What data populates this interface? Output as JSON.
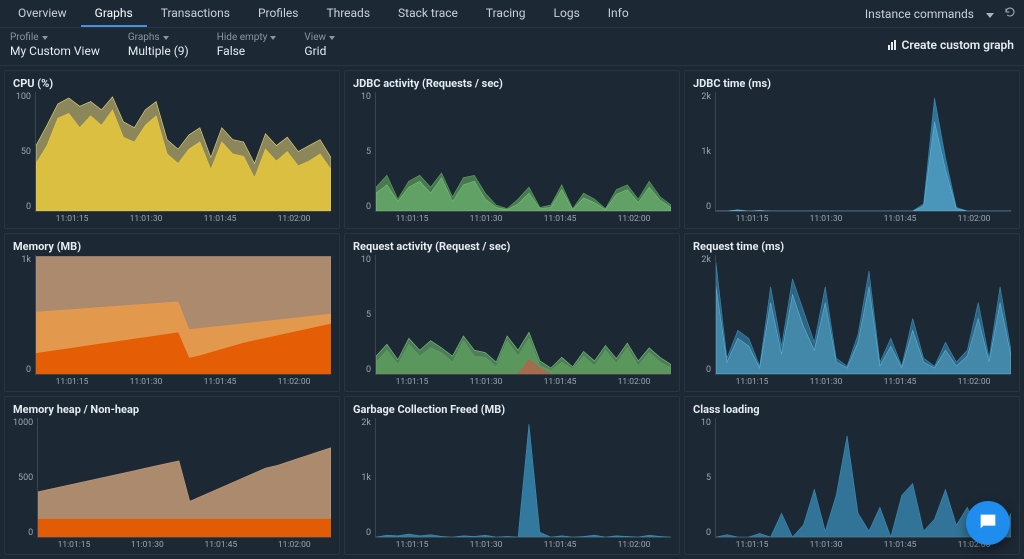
{
  "nav": {
    "tabs": [
      "Overview",
      "Graphs",
      "Transactions",
      "Profiles",
      "Threads",
      "Stack trace",
      "Tracing",
      "Logs",
      "Info"
    ],
    "active_index": 1,
    "instance_commands_label": "Instance commands"
  },
  "filters": {
    "profile": {
      "label": "Profile",
      "value": "My Custom View"
    },
    "graphs": {
      "label": "Graphs",
      "value": "Multiple (9)"
    },
    "hideempty": {
      "label": "Hide empty",
      "value": "False"
    },
    "view": {
      "label": "View",
      "value": "Grid"
    },
    "create_label": "Create custom graph"
  },
  "xaxis_ticks": [
    "11:01:15",
    "11:01:30",
    "11:01:45",
    "11:02:00"
  ],
  "colors": {
    "bg": "#1c2834",
    "panel_border": "#2a3542",
    "axis": "#3a4552",
    "text": "#c8d2dc",
    "muted": "#9aa6b2"
  },
  "charts": [
    {
      "id": "cpu",
      "title": "CPU (%)",
      "type": "area",
      "ylim": [
        0,
        100
      ],
      "yticks": [
        "100",
        "50",
        "0"
      ],
      "series": [
        {
          "color": "#e8d67a",
          "opacity": 0.55,
          "values": [
            55,
            72,
            90,
            95,
            88,
            92,
            85,
            96,
            75,
            70,
            85,
            92,
            60,
            52,
            64,
            70,
            45,
            70,
            60,
            58,
            40,
            65,
            55,
            62,
            50,
            55,
            60,
            45
          ]
        },
        {
          "color": "#e8c93c",
          "opacity": 0.85,
          "values": [
            40,
            55,
            78,
            82,
            70,
            80,
            72,
            85,
            62,
            58,
            72,
            80,
            48,
            40,
            52,
            58,
            35,
            58,
            48,
            46,
            28,
            52,
            42,
            50,
            38,
            42,
            48,
            35
          ]
        }
      ]
    },
    {
      "id": "jdbc_activity",
      "title": "JDBC activity (Requests / sec)",
      "type": "area",
      "ylim": [
        0,
        10
      ],
      "yticks": [
        "10",
        "5",
        "0"
      ],
      "series": [
        {
          "color": "#5fa35f",
          "opacity": 0.65,
          "values": [
            2,
            3,
            1,
            2.5,
            3,
            2,
            3.2,
            1.2,
            2.8,
            3,
            1.5,
            0.5,
            0.2,
            1,
            2,
            0.3,
            0.5,
            2.2,
            0.2,
            1.5,
            1,
            0.2,
            1.8,
            2.2,
            1,
            2.5,
            1.2,
            0.5
          ]
        },
        {
          "color": "#79c279",
          "opacity": 0.55,
          "values": [
            1.5,
            2.2,
            0.8,
            2,
            2.5,
            1.5,
            2.8,
            0.8,
            2.2,
            2.5,
            1,
            0.3,
            0.1,
            0.6,
            1.5,
            0.2,
            0.3,
            1.8,
            0.1,
            1.1,
            0.7,
            0.1,
            1.4,
            1.8,
            0.7,
            2,
            0.9,
            0.3
          ]
        }
      ]
    },
    {
      "id": "jdbc_time",
      "title": "JDBC time (ms)",
      "type": "area",
      "ylim": [
        0,
        2000
      ],
      "yticks": [
        "2k",
        "1k",
        "0"
      ],
      "series": [
        {
          "color": "#3a8db8",
          "opacity": 0.75,
          "values": [
            0,
            0,
            20,
            0,
            10,
            0,
            0,
            0,
            0,
            0,
            0,
            0,
            0,
            0,
            0,
            0,
            0,
            0,
            0,
            120,
            1900,
            900,
            60,
            0,
            0,
            0,
            0,
            0
          ]
        },
        {
          "color": "#5fb3d9",
          "opacity": 0.55,
          "values": [
            0,
            0,
            15,
            0,
            8,
            0,
            0,
            0,
            0,
            0,
            0,
            0,
            0,
            0,
            0,
            0,
            0,
            0,
            0,
            80,
            1500,
            700,
            40,
            0,
            0,
            0,
            0,
            0
          ]
        }
      ]
    },
    {
      "id": "memory",
      "title": "Memory (MB)",
      "type": "area",
      "ylim": [
        0,
        1500
      ],
      "yticks": [
        "1k",
        "0"
      ],
      "series": [
        {
          "color": "#c69b78",
          "opacity": 0.85,
          "values": [
            1480,
            1480,
            1480,
            1480,
            1480,
            1480,
            1480,
            1480,
            1480,
            1480,
            1480,
            1480,
            1480,
            1480,
            1480,
            1480,
            1480,
            1480,
            1480,
            1480,
            1480,
            1480,
            1480,
            1480,
            1480,
            1480,
            1480,
            1480
          ]
        },
        {
          "color": "#e89a4a",
          "opacity": 0.9,
          "values": [
            780,
            790,
            800,
            810,
            820,
            830,
            840,
            850,
            860,
            870,
            880,
            890,
            900,
            910,
            560,
            575,
            590,
            605,
            620,
            635,
            650,
            665,
            680,
            695,
            710,
            725,
            740,
            755
          ]
        },
        {
          "color": "#e55a00",
          "opacity": 0.95,
          "values": [
            260,
            280,
            300,
            320,
            340,
            360,
            380,
            400,
            420,
            440,
            460,
            480,
            500,
            520,
            200,
            230,
            270,
            310,
            350,
            390,
            420,
            450,
            480,
            510,
            540,
            570,
            600,
            630
          ]
        }
      ]
    },
    {
      "id": "request_activity",
      "title": "Request activity (Request / sec)",
      "type": "area",
      "ylim": [
        0,
        10
      ],
      "yticks": [
        "10",
        "5",
        "0"
      ],
      "series": [
        {
          "color": "#79c279",
          "opacity": 0.55,
          "values": [
            1.5,
            2.5,
            1.2,
            3,
            2,
            2.8,
            2.2,
            1.5,
            3.2,
            2,
            1.8,
            1,
            3.2,
            2,
            3.5,
            1.1,
            0.5,
            1.4,
            0.6,
            1.9,
            1.1,
            2.4,
            1.3,
            2.6,
            1.1,
            2.2,
            1.4,
            0.8
          ]
        },
        {
          "color": "#5fa35f",
          "opacity": 0.7,
          "values": [
            1,
            2,
            0.8,
            2.5,
            1.5,
            2.2,
            1.8,
            1,
            2.8,
            1.5,
            1.4,
            0.6,
            2.8,
            1.5,
            3,
            0.7,
            0.3,
            1,
            0.4,
            1.5,
            0.7,
            2,
            0.9,
            2.2,
            0.7,
            1.8,
            1,
            0.5
          ]
        },
        {
          "color": "#c15a4a",
          "opacity": 0.7,
          "values": [
            0,
            0,
            0,
            0,
            0,
            0,
            0,
            0,
            0,
            0,
            0,
            0,
            0,
            0,
            1.2,
            0.5,
            0,
            0,
            0,
            0,
            0,
            0,
            0,
            0,
            0,
            0,
            0,
            0
          ]
        }
      ]
    },
    {
      "id": "request_time",
      "title": "Request time (ms)",
      "type": "area",
      "ylim": [
        0,
        3000
      ],
      "yticks": [
        "2k",
        "0"
      ],
      "series": [
        {
          "color": "#3a8db8",
          "opacity": 0.6,
          "values": [
            2800,
            400,
            1100,
            900,
            200,
            2200,
            700,
            2400,
            1600,
            800,
            2200,
            400,
            200,
            1000,
            2600,
            300,
            900,
            200,
            1400,
            400,
            200,
            800,
            300,
            600,
            1800,
            400,
            2200,
            600
          ]
        },
        {
          "color": "#5fb3d9",
          "opacity": 0.45,
          "values": [
            2200,
            300,
            900,
            700,
            150,
            1800,
            500,
            2000,
            1200,
            600,
            1800,
            300,
            150,
            800,
            2200,
            200,
            700,
            150,
            1100,
            300,
            150,
            600,
            200,
            450,
            1400,
            300,
            1800,
            450
          ]
        }
      ]
    },
    {
      "id": "heap",
      "title": "Memory heap / Non-heap",
      "type": "area",
      "ylim": [
        0,
        1000
      ],
      "yticks": [
        "1000",
        "500",
        "0"
      ],
      "series": [
        {
          "color": "#c69b78",
          "opacity": 0.85,
          "values": [
            380,
            400,
            420,
            440,
            460,
            480,
            500,
            520,
            540,
            560,
            580,
            600,
            620,
            640,
            300,
            340,
            380,
            420,
            460,
            500,
            540,
            580,
            600,
            630,
            660,
            690,
            720,
            750
          ]
        },
        {
          "color": "#e55a00",
          "opacity": 0.95,
          "values": [
            150,
            150,
            150,
            150,
            150,
            150,
            150,
            150,
            150,
            150,
            150,
            150,
            150,
            150,
            150,
            150,
            150,
            150,
            150,
            150,
            150,
            150,
            150,
            150,
            150,
            150,
            150,
            150
          ]
        }
      ]
    },
    {
      "id": "gc",
      "title": "Garbage Collection Freed (MB)",
      "type": "area",
      "ylim": [
        0,
        2000
      ],
      "yticks": [
        "2k",
        "1k",
        "0"
      ],
      "series": [
        {
          "color": "#3a8db8",
          "opacity": 0.8,
          "values": [
            0,
            30,
            20,
            50,
            20,
            40,
            10,
            0,
            20,
            10,
            30,
            0,
            10,
            0,
            1900,
            80,
            0,
            20,
            0,
            10,
            30,
            0,
            20,
            10,
            0,
            30,
            10,
            0
          ]
        }
      ]
    },
    {
      "id": "class_loading",
      "title": "Class loading",
      "type": "area",
      "ylim": [
        0,
        10
      ],
      "yticks": [
        "10",
        "5",
        "0"
      ],
      "series": [
        {
          "color": "#3a8db8",
          "opacity": 0.75,
          "values": [
            0,
            0.2,
            0,
            0,
            0.3,
            0,
            2,
            0,
            1,
            4,
            0.5,
            3.5,
            8.5,
            2,
            0.5,
            2.5,
            0,
            3.5,
            4.5,
            0.5,
            1.5,
            4,
            1,
            2.5,
            0.5,
            3,
            0,
            2
          ]
        }
      ]
    }
  ]
}
